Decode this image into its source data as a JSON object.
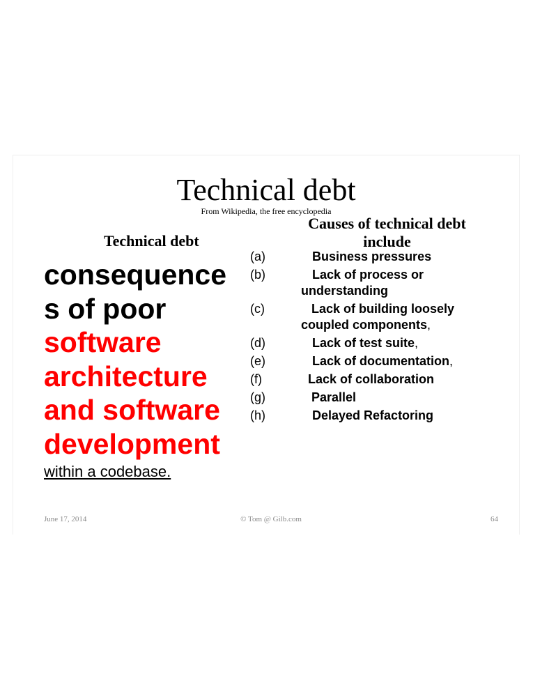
{
  "slide": {
    "title": "Technical debt",
    "source": "From Wikipedia, the free encyclopedia",
    "left_heading": "Technical debt",
    "big_text": {
      "line1": "consequence",
      "line2": "s of poor",
      "line3": "software",
      "line4": "architecture",
      "line5": "and software",
      "line6": "development"
    },
    "within": "within a codebase.",
    "right_heading": "Causes of technical debt include",
    "causes": [
      {
        "letter": "(a)",
        "text": "Business pressures",
        "suffix": ""
      },
      {
        "letter": "(b)",
        "text_line1": "Lack of process or",
        "text_line2": "understanding",
        "suffix": ""
      },
      {
        "letter": "(c)",
        "text_line1": "Lack of building loosely",
        "text_line2": "coupled components",
        "suffix": ","
      },
      {
        "letter": "(d)",
        "text": "Lack of test suite",
        "suffix": ","
      },
      {
        "letter": "(e)",
        "text": "Lack of documentation",
        "suffix": ","
      },
      {
        "letter": "(f)",
        "text": "Lack of collaboration",
        "suffix": ""
      },
      {
        "letter": "(g)",
        "text": "Parallel",
        "suffix": ""
      },
      {
        "letter": "(h)",
        "text": "Delayed Refactoring",
        "suffix": ""
      }
    ],
    "footer": {
      "date": "June 17, 2014",
      "copyright": "© Tom @ Gilb.com",
      "page": "64"
    },
    "colors": {
      "highlight": "#ff0000",
      "footer_text": "#8a8a8a"
    }
  }
}
